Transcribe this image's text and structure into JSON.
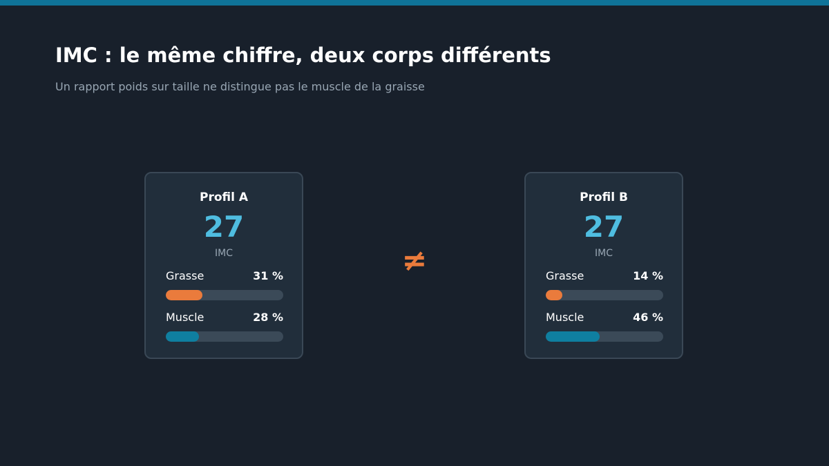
{
  "header": {
    "title": "IMC : le même chiffre, deux corps différents",
    "subtitle": "Un rapport poids sur taille ne distingue pas le muscle de la graisse"
  },
  "comparison_symbol": "≠",
  "colors": {
    "background": "#18202b",
    "accent_bar": "#0f7398",
    "value": "#4fbde0",
    "grasse": "#ea7b3c",
    "muscle": "#0f7fa0",
    "symbol": "#ea7b3c"
  },
  "profiles": [
    {
      "title": "Profil A",
      "value": "27",
      "unit": "IMC",
      "grasse": {
        "label": "Grasse",
        "pct_text": "31 %",
        "fraction": 0.31
      },
      "muscle": {
        "label": "Muscle",
        "pct_text": "28 %",
        "fraction": 0.28
      }
    },
    {
      "title": "Profil B",
      "value": "27",
      "unit": "IMC",
      "grasse": {
        "label": "Grasse",
        "pct_text": "14 %",
        "fraction": 0.14
      },
      "muscle": {
        "label": "Muscle",
        "pct_text": "46 %",
        "fraction": 0.46
      }
    }
  ]
}
